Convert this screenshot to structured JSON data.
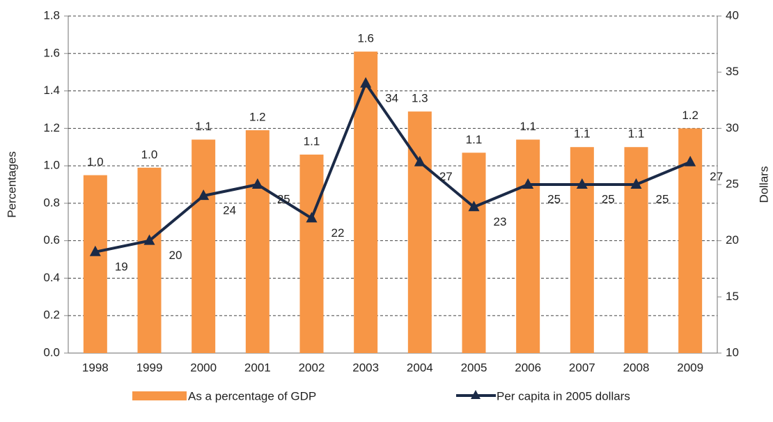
{
  "chart_data": {
    "type": "bar",
    "categories": [
      "1998",
      "1999",
      "2000",
      "2001",
      "2002",
      "2003",
      "2004",
      "2005",
      "2006",
      "2007",
      "2008",
      "2009"
    ],
    "series": [
      {
        "name": "As a percentage of GDP",
        "color": "#f79646",
        "type": "bar",
        "values": [
          0.95,
          0.99,
          1.14,
          1.19,
          1.06,
          1.61,
          1.29,
          1.07,
          1.14,
          1.1,
          1.1,
          1.2
        ],
        "value_labels": [
          "1.0",
          "1.0",
          "1.1",
          "1.2",
          "1.1",
          "1.6",
          "1.3",
          "1.1",
          "1.1",
          "1.1",
          "1.1",
          "1.2"
        ]
      },
      {
        "name": "Per capita in 2005 dollars",
        "color": "#1b2a47",
        "type": "line",
        "axis": "y2",
        "values": [
          19,
          20,
          24,
          25,
          22,
          34,
          27,
          23,
          25,
          25,
          25,
          27
        ]
      }
    ],
    "ylabel": "Percentages",
    "y2label": "Dollars",
    "ylim": [
      0,
      1.8
    ],
    "yticks": [
      {
        "value": 0,
        "label": "0.0"
      },
      0.2,
      0.4,
      0.6,
      0.8,
      {
        "value": 1,
        "label": "1.0"
      },
      1.2,
      1.4,
      1.6,
      1.8
    ],
    "y2lim": [
      10,
      40
    ],
    "y2ticks": [
      10,
      15,
      20,
      25,
      30,
      35,
      40
    ],
    "grid": true
  }
}
